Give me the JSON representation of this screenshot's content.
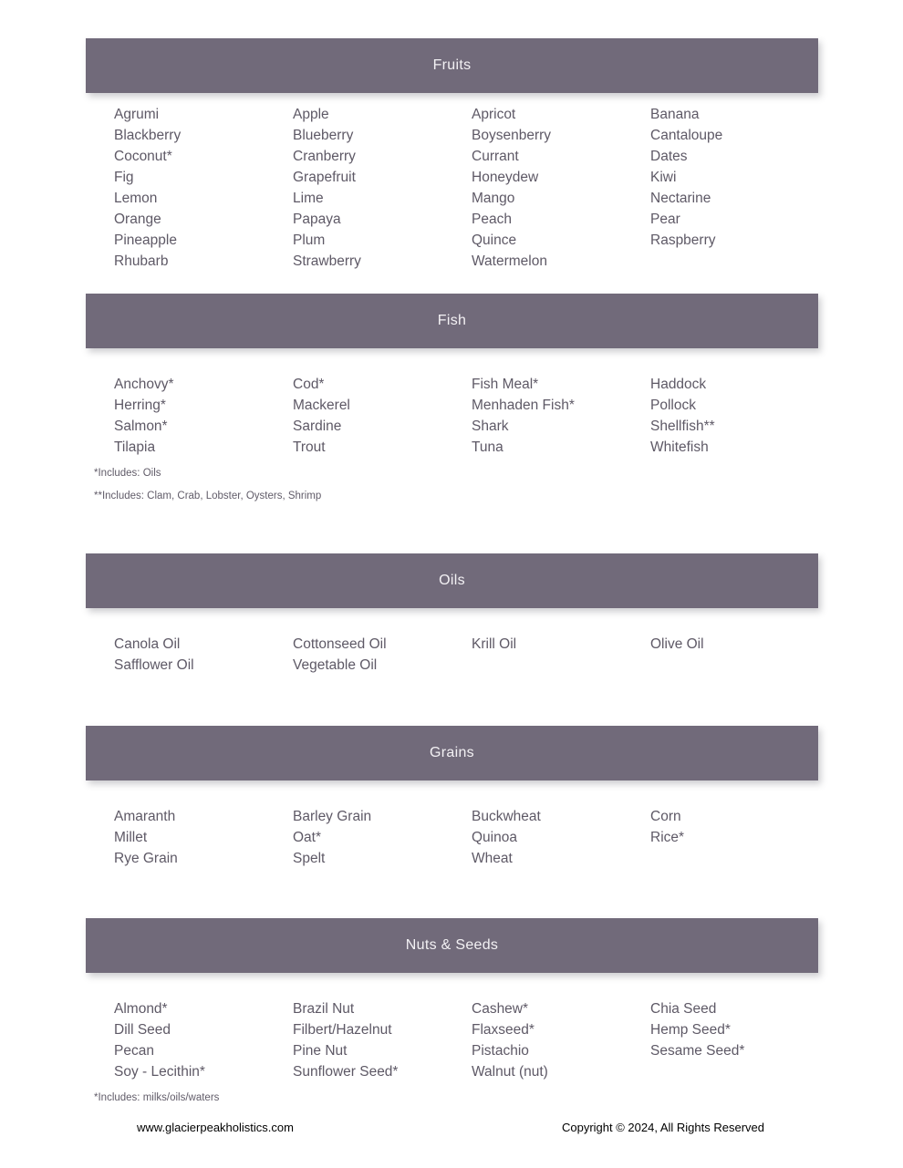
{
  "page": {
    "colors": {
      "header_bar": "#716a7a",
      "header_text": "#f3f1f4",
      "item_text": "#5e5966",
      "footer_text": "#000000",
      "background": "#ffffff"
    },
    "footer": {
      "website": "www.glacierpeakholistics.com",
      "copyright": "Copyright © 2024, All Rights Reserved"
    }
  },
  "sections": [
    {
      "id": "fruits",
      "title": "Fruits",
      "columns": [
        [
          "Agrumi",
          "Blackberry",
          "Coconut*",
          "Fig",
          "Lemon",
          "Orange",
          "Pineapple",
          "Rhubarb"
        ],
        [
          "Apple",
          "Blueberry",
          "Cranberry",
          "Grapefruit",
          "Lime",
          "Papaya",
          "Plum",
          "Strawberry"
        ],
        [
          "Apricot",
          "Boysenberry",
          "Currant",
          "Honeydew",
          "Mango",
          "Peach",
          "Quince",
          "Watermelon"
        ],
        [
          "Banana",
          "Cantaloupe",
          "Dates",
          "Kiwi",
          "Nectarine",
          "Pear",
          "Raspberry"
        ]
      ],
      "notes": []
    },
    {
      "id": "fish",
      "title": "Fish",
      "columns": [
        [
          "Anchovy*",
          "Herring*",
          "Salmon*",
          "Tilapia"
        ],
        [
          "Cod*",
          "Mackerel",
          "Sardine",
          "Trout"
        ],
        [
          "Fish Meal*",
          "Menhaden Fish*",
          "Shark",
          "Tuna"
        ],
        [
          "Haddock",
          "Pollock",
          "Shellfish**",
          "Whitefish"
        ]
      ],
      "notes": [
        "*Includes: Oils",
        "**Includes: Clam, Crab, Lobster, Oysters, Shrimp"
      ]
    },
    {
      "id": "oils",
      "title": "Oils",
      "columns": [
        [
          "Canola Oil",
          "Safflower Oil"
        ],
        [
          "Cottonseed Oil",
          "Vegetable Oil"
        ],
        [
          "Krill Oil"
        ],
        [
          "Olive Oil"
        ]
      ],
      "notes": []
    },
    {
      "id": "grains",
      "title": "Grains",
      "columns": [
        [
          "Amaranth",
          "Millet",
          "Rye Grain"
        ],
        [
          "Barley Grain",
          "Oat*",
          "Spelt"
        ],
        [
          "Buckwheat",
          "Quinoa",
          "Wheat"
        ],
        [
          "Corn",
          "Rice*"
        ]
      ],
      "notes": []
    },
    {
      "id": "nuts-seeds",
      "title": "Nuts & Seeds",
      "columns": [
        [
          "Almond*",
          "Dill Seed",
          "Pecan",
          "Soy - Lecithin*"
        ],
        [
          "Brazil Nut",
          "Filbert/Hazelnut",
          "Pine Nut",
          "Sunflower Seed*"
        ],
        [
          "Cashew*",
          "Flaxseed*",
          "Pistachio",
          "Walnut (nut)"
        ],
        [
          "Chia Seed",
          "Hemp Seed*",
          "Sesame Seed*"
        ]
      ],
      "notes": [
        "*Includes: milks/oils/waters"
      ]
    }
  ]
}
